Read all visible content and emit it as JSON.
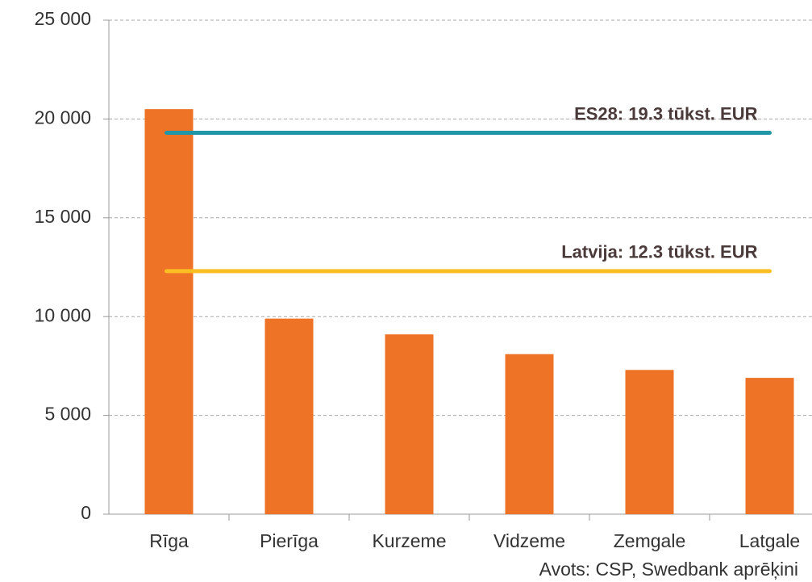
{
  "chart_data": {
    "type": "bar",
    "categories": [
      "Rīga",
      "Pierīga",
      "Kurzeme",
      "Vidzeme",
      "Zemgale",
      "Latgale"
    ],
    "values": [
      20500,
      9900,
      9100,
      8100,
      7300,
      6900
    ],
    "color": "#ee7326",
    "ylim": [
      0,
      25000
    ],
    "yticks": [
      0,
      {
        "value": 5000,
        "label": "5 000"
      },
      {
        "value": 10000,
        "label": "10 000"
      },
      {
        "value": 15000,
        "label": "15 000"
      },
      {
        "value": 20000,
        "label": "20 000"
      },
      {
        "value": 25000,
        "label": "25 000"
      }
    ],
    "grid": true,
    "reference_lines": [
      {
        "label": "ES28: 19.3 tūkst. EUR",
        "value": 19300,
        "color": "#2196a6"
      },
      {
        "label": "Latvija: 12.3 tūkst. EUR",
        "value": 12300,
        "color": "#fbbf24"
      }
    ],
    "source": "Avots: CSP, Swedbank aprēķini"
  }
}
